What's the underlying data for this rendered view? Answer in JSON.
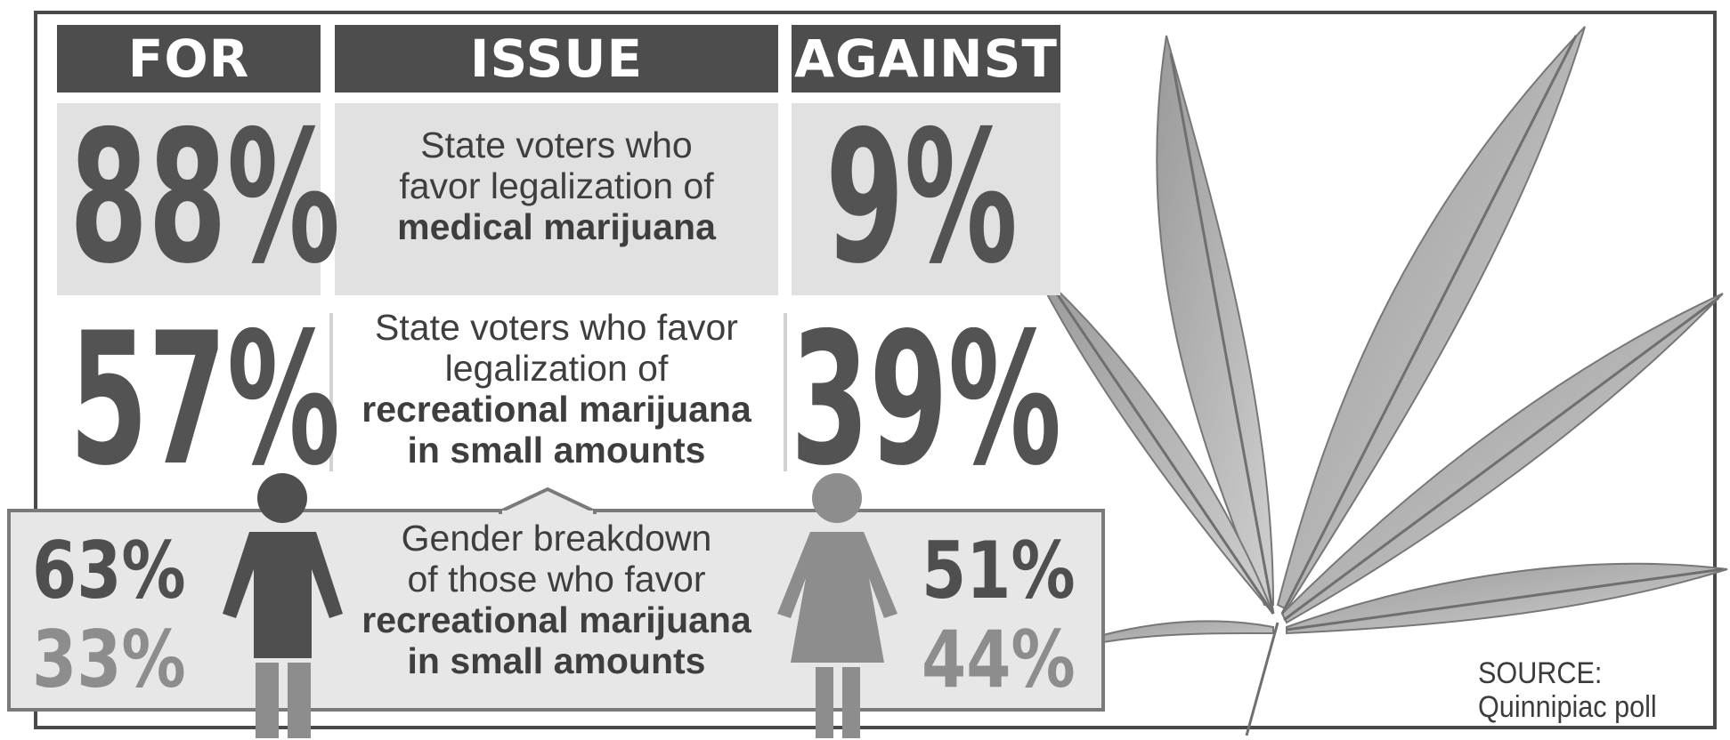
{
  "chart_data": {
    "type": "table",
    "columns": [
      "FOR",
      "ISSUE",
      "AGAINST"
    ],
    "rows": [
      {
        "for": "88%",
        "issue": [
          "State voters who",
          "favor legalization of"
        ],
        "issue_bold": [
          "medical marijuana"
        ],
        "against": "9%"
      },
      {
        "for": "57%",
        "issue": [
          "State voters who favor",
          "legalization of"
        ],
        "issue_bold": [
          "recreational marijuana",
          "in small amounts"
        ],
        "against": "39%"
      }
    ],
    "gender_breakdown": {
      "issue": [
        "Gender breakdown",
        "of those who favor"
      ],
      "issue_bold": [
        "recreational marijuana",
        "in small amounts"
      ],
      "male": {
        "for": "63%",
        "against": "33%"
      },
      "female": {
        "for": "51%",
        "against": "44%"
      }
    },
    "source": [
      "SOURCE:",
      "Quinnipiac poll"
    ],
    "colors": {
      "header": "#4d4d4d",
      "cell": "#e1e1e1",
      "dark_text": "#535353",
      "light_text": "#8d8d8d"
    }
  }
}
